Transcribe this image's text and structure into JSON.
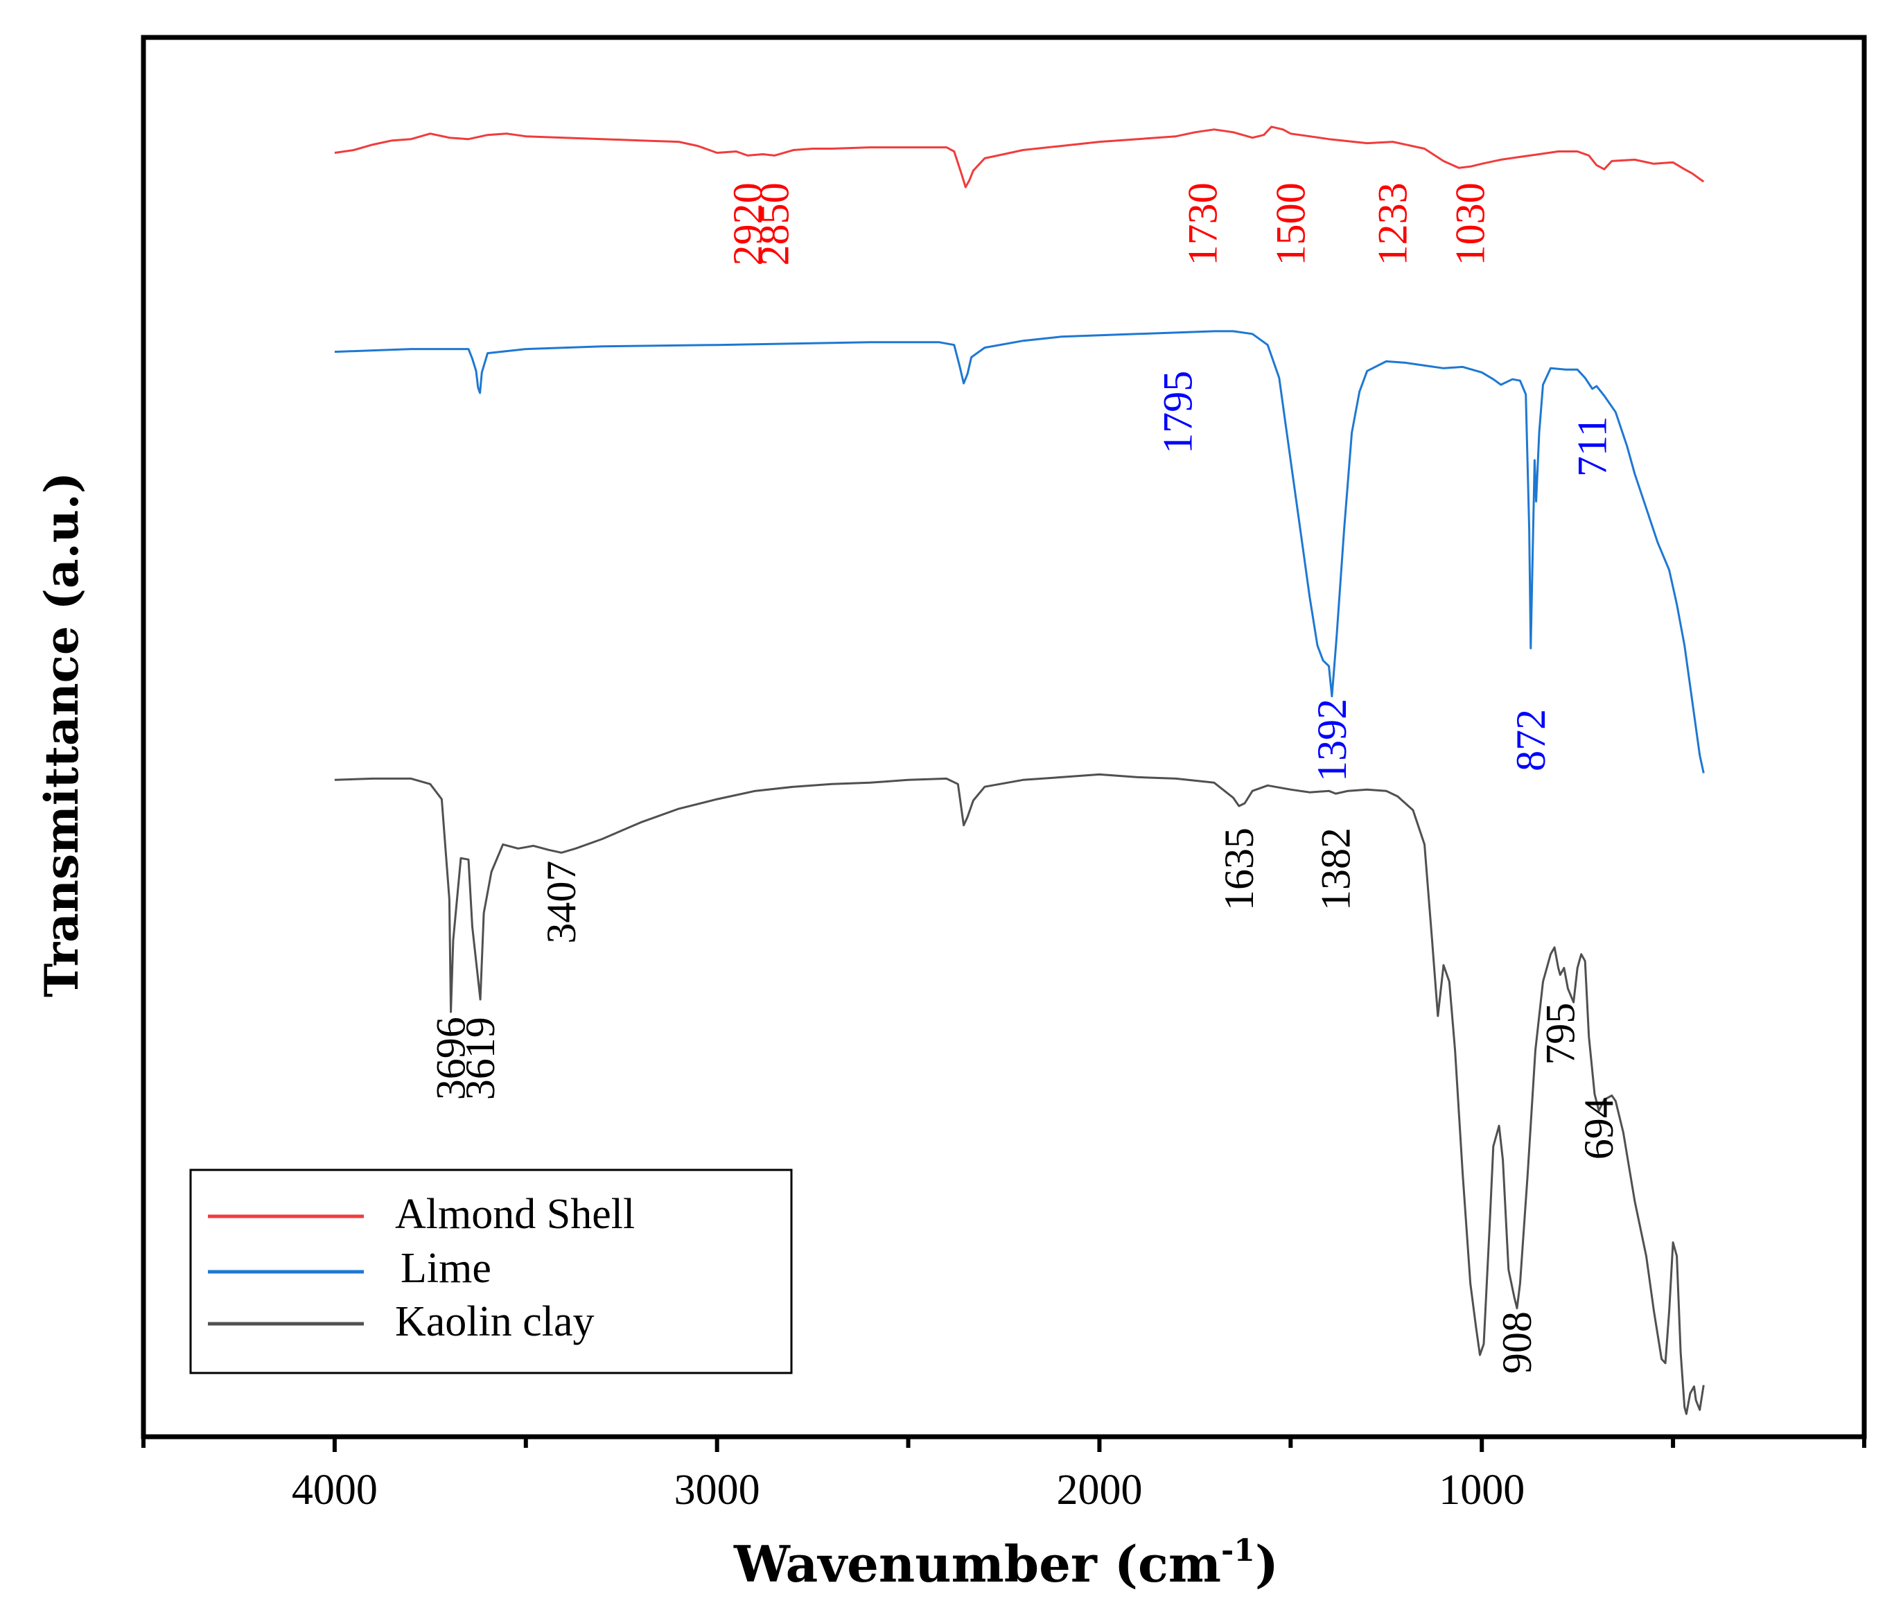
{
  "chart_data": {
    "type": "line",
    "title": "",
    "xlabel": "Wavenumber (cm",
    "xlabel_sup": "-1",
    "xlabel_end": ")",
    "ylabel": "Transmittance (a.u.)",
    "xlim": [
      4500,
      0
    ],
    "ylim": [
      0,
      100
    ],
    "x_ticks": [
      4000,
      3000,
      2000,
      1000
    ],
    "x_tick_labels": [
      "4000",
      "3000",
      "2000",
      "1000"
    ],
    "x_minor_ticks": [
      4500,
      3500,
      2500,
      1500,
      500,
      0
    ],
    "grid": false,
    "legend": {
      "placement": "bottom-left",
      "entries": [
        {
          "label": "Almond Shell",
          "series": "almond"
        },
        {
          "label": "Lime",
          "series": "lime"
        },
        {
          "label": "Kaolin clay",
          "series": "kaolin"
        }
      ]
    },
    "series": [
      {
        "id": "almond",
        "name": "Almond Shell",
        "color": "#f03c3c",
        "points": [
          [
            4000,
            92.4
          ],
          [
            3950,
            92.6
          ],
          [
            3900,
            93.0
          ],
          [
            3850,
            93.3
          ],
          [
            3800,
            93.4
          ],
          [
            3750,
            93.8
          ],
          [
            3700,
            93.5
          ],
          [
            3650,
            93.4
          ],
          [
            3600,
            93.7
          ],
          [
            3550,
            93.8
          ],
          [
            3500,
            93.6
          ],
          [
            3400,
            93.5
          ],
          [
            3300,
            93.4
          ],
          [
            3200,
            93.3
          ],
          [
            3100,
            93.2
          ],
          [
            3050,
            92.9
          ],
          [
            3000,
            92.4
          ],
          [
            2950,
            92.5
          ],
          [
            2920,
            92.2
          ],
          [
            2880,
            92.3
          ],
          [
            2850,
            92.2
          ],
          [
            2800,
            92.6
          ],
          [
            2750,
            92.7
          ],
          [
            2700,
            92.7
          ],
          [
            2600,
            92.8
          ],
          [
            2500,
            92.8
          ],
          [
            2400,
            92.8
          ],
          [
            2380,
            92.5
          ],
          [
            2360,
            90.8
          ],
          [
            2350,
            89.9
          ],
          [
            2340,
            90.4
          ],
          [
            2330,
            91.1
          ],
          [
            2300,
            92.0
          ],
          [
            2250,
            92.3
          ],
          [
            2200,
            92.6
          ],
          [
            2100,
            92.9
          ],
          [
            2000,
            93.2
          ],
          [
            1900,
            93.4
          ],
          [
            1800,
            93.6
          ],
          [
            1750,
            93.9
          ],
          [
            1700,
            94.1
          ],
          [
            1650,
            93.9
          ],
          [
            1600,
            93.5
          ],
          [
            1570,
            93.7
          ],
          [
            1550,
            94.3
          ],
          [
            1520,
            94.1
          ],
          [
            1500,
            93.8
          ],
          [
            1450,
            93.6
          ],
          [
            1400,
            93.4
          ],
          [
            1300,
            93.1
          ],
          [
            1233,
            93.2
          ],
          [
            1150,
            92.7
          ],
          [
            1100,
            91.8
          ],
          [
            1060,
            91.3
          ],
          [
            1030,
            91.4
          ],
          [
            1000,
            91.6
          ],
          [
            950,
            91.9
          ],
          [
            900,
            92.1
          ],
          [
            850,
            92.3
          ],
          [
            800,
            92.5
          ],
          [
            750,
            92.5
          ],
          [
            720,
            92.2
          ],
          [
            700,
            91.5
          ],
          [
            680,
            91.2
          ],
          [
            660,
            91.8
          ],
          [
            600,
            91.9
          ],
          [
            550,
            91.6
          ],
          [
            500,
            91.7
          ],
          [
            470,
            91.2
          ],
          [
            450,
            90.9
          ],
          [
            430,
            90.5
          ],
          [
            420,
            90.3
          ]
        ]
      },
      {
        "id": "lime",
        "name": "Lime",
        "color": "#1e78d2",
        "points": [
          [
            4000,
            77.9
          ],
          [
            3900,
            78.0
          ],
          [
            3800,
            78.1
          ],
          [
            3700,
            78.1
          ],
          [
            3650,
            78.1
          ],
          [
            3640,
            77.4
          ],
          [
            3630,
            76.5
          ],
          [
            3625,
            75.3
          ],
          [
            3620,
            74.9
          ],
          [
            3615,
            76.4
          ],
          [
            3600,
            77.8
          ],
          [
            3500,
            78.1
          ],
          [
            3300,
            78.3
          ],
          [
            3000,
            78.4
          ],
          [
            2800,
            78.5
          ],
          [
            2600,
            78.6
          ],
          [
            2420,
            78.6
          ],
          [
            2380,
            78.4
          ],
          [
            2365,
            76.8
          ],
          [
            2355,
            75.6
          ],
          [
            2345,
            76.3
          ],
          [
            2335,
            77.5
          ],
          [
            2300,
            78.2
          ],
          [
            2200,
            78.7
          ],
          [
            2100,
            79.0
          ],
          [
            2000,
            79.1
          ],
          [
            1900,
            79.2
          ],
          [
            1800,
            79.3
          ],
          [
            1700,
            79.4
          ],
          [
            1650,
            79.4
          ],
          [
            1600,
            79.2
          ],
          [
            1560,
            78.4
          ],
          [
            1530,
            76.0
          ],
          [
            1500,
            70.0
          ],
          [
            1470,
            64.0
          ],
          [
            1450,
            60.0
          ],
          [
            1430,
            56.5
          ],
          [
            1415,
            55.4
          ],
          [
            1400,
            55.0
          ],
          [
            1392,
            52.8
          ],
          [
            1380,
            57.0
          ],
          [
            1360,
            65.0
          ],
          [
            1340,
            72.0
          ],
          [
            1320,
            75.0
          ],
          [
            1300,
            76.5
          ],
          [
            1250,
            77.2
          ],
          [
            1200,
            77.1
          ],
          [
            1150,
            76.9
          ],
          [
            1100,
            76.7
          ],
          [
            1050,
            76.8
          ],
          [
            1000,
            76.4
          ],
          [
            970,
            75.9
          ],
          [
            950,
            75.5
          ],
          [
            920,
            75.9
          ],
          [
            900,
            75.8
          ],
          [
            885,
            74.8
          ],
          [
            876,
            65.0
          ],
          [
            872,
            56.3
          ],
          [
            868,
            62.0
          ],
          [
            862,
            70.0
          ],
          [
            858,
            67.0
          ],
          [
            850,
            72.0
          ],
          [
            840,
            75.5
          ],
          [
            820,
            76.7
          ],
          [
            780,
            76.6
          ],
          [
            750,
            76.6
          ],
          [
            730,
            76.0
          ],
          [
            711,
            75.2
          ],
          [
            700,
            75.4
          ],
          [
            680,
            74.7
          ],
          [
            650,
            73.5
          ],
          [
            620,
            71.0
          ],
          [
            600,
            69.0
          ],
          [
            570,
            66.5
          ],
          [
            540,
            64.0
          ],
          [
            510,
            62.0
          ],
          [
            490,
            59.5
          ],
          [
            470,
            56.5
          ],
          [
            450,
            52.5
          ],
          [
            430,
            48.5
          ],
          [
            420,
            47.2
          ]
        ]
      },
      {
        "id": "kaolin",
        "name": "Kaolin clay",
        "color": "#505050",
        "points": [
          [
            4000,
            46.7
          ],
          [
            3900,
            46.8
          ],
          [
            3800,
            46.8
          ],
          [
            3750,
            46.4
          ],
          [
            3720,
            45.3
          ],
          [
            3700,
            38.0
          ],
          [
            3696,
            29.8
          ],
          [
            3690,
            35.0
          ],
          [
            3670,
            41.0
          ],
          [
            3650,
            40.9
          ],
          [
            3640,
            36.0
          ],
          [
            3619,
            30.7
          ],
          [
            3610,
            37.0
          ],
          [
            3590,
            40.0
          ],
          [
            3560,
            42.0
          ],
          [
            3520,
            41.7
          ],
          [
            3480,
            41.9
          ],
          [
            3440,
            41.6
          ],
          [
            3407,
            41.4
          ],
          [
            3370,
            41.7
          ],
          [
            3300,
            42.4
          ],
          [
            3200,
            43.6
          ],
          [
            3100,
            44.6
          ],
          [
            3000,
            45.3
          ],
          [
            2900,
            45.9
          ],
          [
            2800,
            46.2
          ],
          [
            2700,
            46.4
          ],
          [
            2600,
            46.5
          ],
          [
            2500,
            46.7
          ],
          [
            2400,
            46.8
          ],
          [
            2370,
            46.4
          ],
          [
            2355,
            43.4
          ],
          [
            2345,
            44.0
          ],
          [
            2330,
            45.2
          ],
          [
            2300,
            46.2
          ],
          [
            2200,
            46.7
          ],
          [
            2100,
            46.9
          ],
          [
            2000,
            47.1
          ],
          [
            1900,
            46.9
          ],
          [
            1800,
            46.8
          ],
          [
            1700,
            46.5
          ],
          [
            1650,
            45.4
          ],
          [
            1635,
            44.8
          ],
          [
            1620,
            45.0
          ],
          [
            1600,
            45.9
          ],
          [
            1560,
            46.3
          ],
          [
            1500,
            46.0
          ],
          [
            1450,
            45.8
          ],
          [
            1400,
            45.9
          ],
          [
            1382,
            45.7
          ],
          [
            1350,
            45.9
          ],
          [
            1300,
            46.0
          ],
          [
            1250,
            45.9
          ],
          [
            1220,
            45.5
          ],
          [
            1180,
            44.5
          ],
          [
            1150,
            42.0
          ],
          [
            1130,
            35.0
          ],
          [
            1115,
            29.5
          ],
          [
            1100,
            33.2
          ],
          [
            1085,
            32.0
          ],
          [
            1070,
            27.0
          ],
          [
            1050,
            18.0
          ],
          [
            1030,
            10.0
          ],
          [
            1015,
            6.8
          ],
          [
            1005,
            4.8
          ],
          [
            995,
            5.6
          ],
          [
            980,
            14.0
          ],
          [
            970,
            20.0
          ],
          [
            955,
            21.5
          ],
          [
            945,
            19.0
          ],
          [
            930,
            11.0
          ],
          [
            915,
            9.0
          ],
          [
            908,
            8.2
          ],
          [
            900,
            10.0
          ],
          [
            880,
            18.0
          ],
          [
            860,
            27.0
          ],
          [
            840,
            32.0
          ],
          [
            820,
            34.0
          ],
          [
            810,
            34.5
          ],
          [
            800,
            33.0
          ],
          [
            795,
            32.5
          ],
          [
            785,
            33.0
          ],
          [
            775,
            31.5
          ],
          [
            760,
            30.5
          ],
          [
            750,
            33.0
          ],
          [
            740,
            34.0
          ],
          [
            730,
            33.5
          ],
          [
            720,
            28.0
          ],
          [
            705,
            23.8
          ],
          [
            694,
            22.6
          ],
          [
            680,
            23.4
          ],
          [
            660,
            23.7
          ],
          [
            650,
            23.3
          ],
          [
            630,
            21.0
          ],
          [
            600,
            16.0
          ],
          [
            570,
            12.0
          ],
          [
            550,
            8.0
          ],
          [
            530,
            4.5
          ],
          [
            520,
            4.2
          ],
          [
            510,
            8.0
          ],
          [
            500,
            13.0
          ],
          [
            490,
            12.0
          ],
          [
            480,
            5.0
          ],
          [
            470,
            1.0
          ],
          [
            465,
            0.5
          ],
          [
            455,
            2.0
          ],
          [
            445,
            2.5
          ],
          [
            440,
            1.5
          ],
          [
            430,
            0.8
          ],
          [
            420,
            2.6
          ]
        ]
      }
    ],
    "peak_labels": [
      {
        "text": "2920",
        "x": 2920,
        "y": 87.2,
        "series": "almond",
        "color": "#ff0000"
      },
      {
        "text": "2850",
        "x": 2850,
        "y": 87.2,
        "series": "almond",
        "color": "#ff0000"
      },
      {
        "text": "1730",
        "x": 1730,
        "y": 87.2,
        "series": "almond",
        "color": "#ff0000"
      },
      {
        "text": "1500",
        "x": 1500,
        "y": 87.2,
        "series": "almond",
        "color": "#ff0000"
      },
      {
        "text": "1233",
        "x": 1233,
        "y": 87.2,
        "series": "almond",
        "color": "#ff0000"
      },
      {
        "text": "1030",
        "x": 1030,
        "y": 87.2,
        "series": "almond",
        "color": "#ff0000"
      },
      {
        "text": "1795",
        "x": 1795,
        "y": 73.5,
        "series": "lime",
        "color": "#0000ff"
      },
      {
        "text": "711",
        "x": 711,
        "y": 71.0,
        "series": "lime",
        "color": "#0000ff"
      },
      {
        "text": "1392",
        "x": 1392,
        "y": 49.6,
        "series": "lime",
        "color": "#0000ff"
      },
      {
        "text": "872",
        "x": 872,
        "y": 49.6,
        "series": "lime",
        "color": "#0000ff"
      },
      {
        "text": "1635",
        "x": 1635,
        "y": 40.2,
        "series": "kaolin",
        "color": "#000000"
      },
      {
        "text": "1382",
        "x": 1382,
        "y": 40.2,
        "series": "kaolin",
        "color": "#000000"
      },
      {
        "text": "3407",
        "x": 3407,
        "y": 37.8,
        "series": "kaolin",
        "color": "#000000"
      },
      {
        "text": "3696",
        "x": 3696,
        "y": 26.4,
        "series": "kaolin",
        "color": "#000000"
      },
      {
        "text": "3619",
        "x": 3619,
        "y": 26.4,
        "series": "kaolin",
        "color": "#000000"
      },
      {
        "text": "795",
        "x": 795,
        "y": 28.2,
        "series": "kaolin",
        "color": "#000000"
      },
      {
        "text": "694",
        "x": 694,
        "y": 21.3,
        "series": "kaolin",
        "color": "#000000"
      },
      {
        "text": "908",
        "x": 908,
        "y": 5.7,
        "series": "kaolin",
        "color": "#000000"
      }
    ]
  }
}
